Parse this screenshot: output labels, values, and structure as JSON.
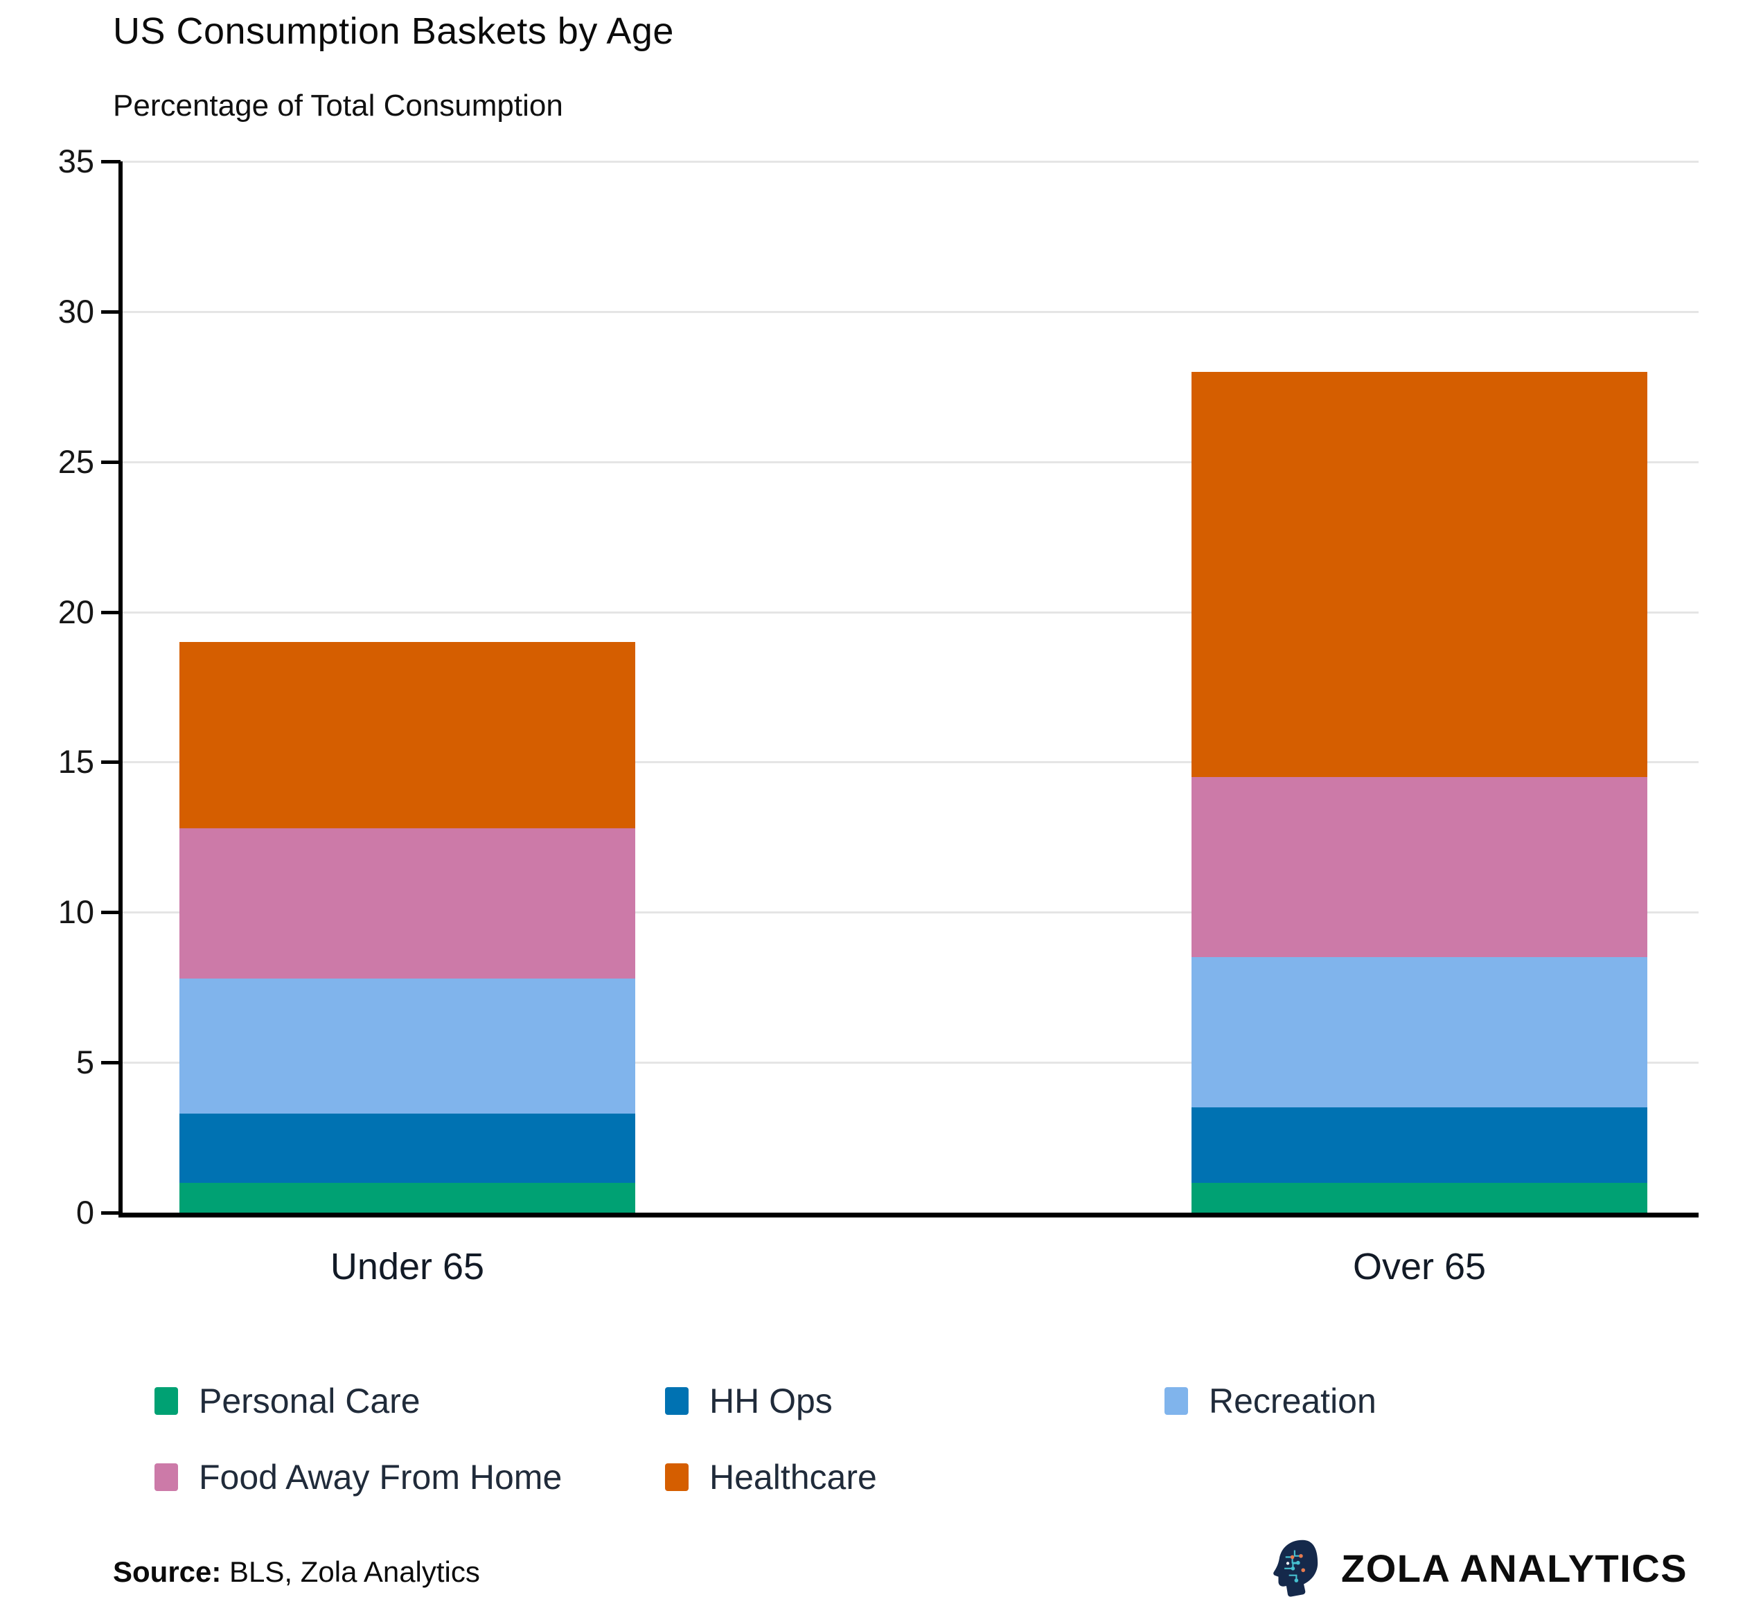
{
  "header": {
    "title": "US Consumption Baskets by Age",
    "subtitle": "Percentage of Total Consumption"
  },
  "chart_data": {
    "type": "bar",
    "stacked": true,
    "title": "US Consumption Baskets by Age",
    "subtitle": "Percentage of Total Consumption",
    "categories": [
      "Under 65",
      "Over 65"
    ],
    "series": [
      {
        "name": "Personal Care",
        "color": "#00A173",
        "values": [
          1.0,
          1.0
        ]
      },
      {
        "name": "HH Ops",
        "color": "#0072B2",
        "values": [
          2.3,
          2.5
        ]
      },
      {
        "name": "Recreation",
        "color": "#80B4EC",
        "values": [
          4.5,
          5.0
        ]
      },
      {
        "name": "Food Away From Home",
        "color": "#CC7AA8",
        "values": [
          5.0,
          6.0
        ]
      },
      {
        "name": "Healthcare",
        "color": "#D55E00",
        "values": [
          6.2,
          13.5
        ]
      }
    ],
    "stack_totals": [
      19.0,
      28.0
    ],
    "xlabel": "",
    "ylabel": "Percentage of Total Consumption",
    "ylim": [
      0,
      35
    ],
    "yticks": [
      0,
      5,
      10,
      15,
      20,
      25,
      30,
      35
    ],
    "grid": true,
    "legend_position": "bottom"
  },
  "footer": {
    "source_label": "Source:",
    "source_text": " BLS, Zola Analytics",
    "brand_name": "ZOLA ANALYTICS"
  },
  "colors": {
    "grid": "#E5E5E5",
    "axis": "#000000",
    "legend_text": "#202B3A"
  }
}
